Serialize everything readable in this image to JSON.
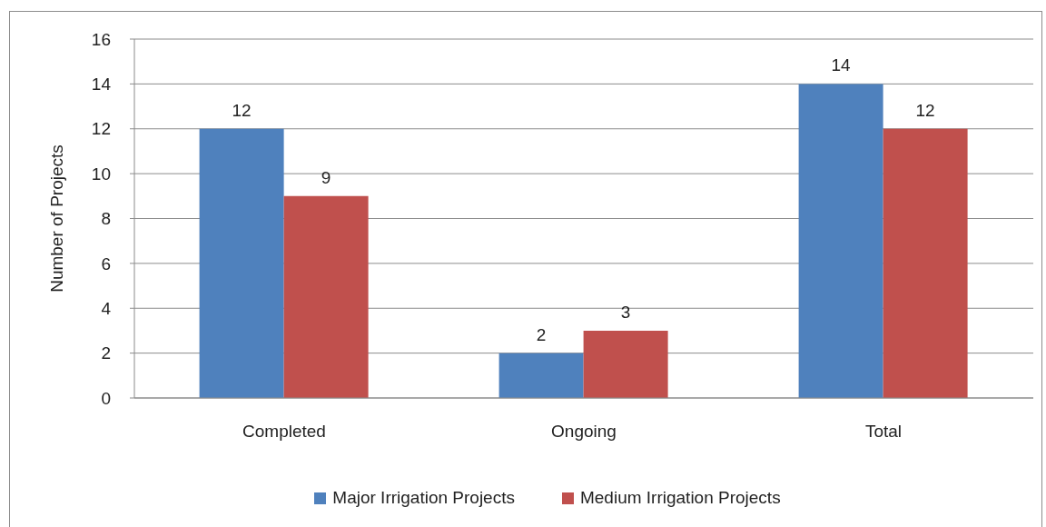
{
  "chart_data": {
    "type": "bar",
    "categories": [
      "Completed",
      "Ongoing",
      "Total"
    ],
    "series": [
      {
        "name": "Major Irrigation Projects",
        "color": "#4f81bd",
        "values": [
          12,
          2,
          14
        ]
      },
      {
        "name": "Medium Irrigation Projects",
        "color": "#c0504d",
        "values": [
          9,
          3,
          12
        ]
      }
    ],
    "ylabel": "Number of Projects",
    "ylim": [
      0,
      16
    ],
    "yticks": [
      0,
      2,
      4,
      6,
      8,
      10,
      12,
      14,
      16
    ],
    "grid": "y",
    "legend": "bottom",
    "data_labels": true
  }
}
